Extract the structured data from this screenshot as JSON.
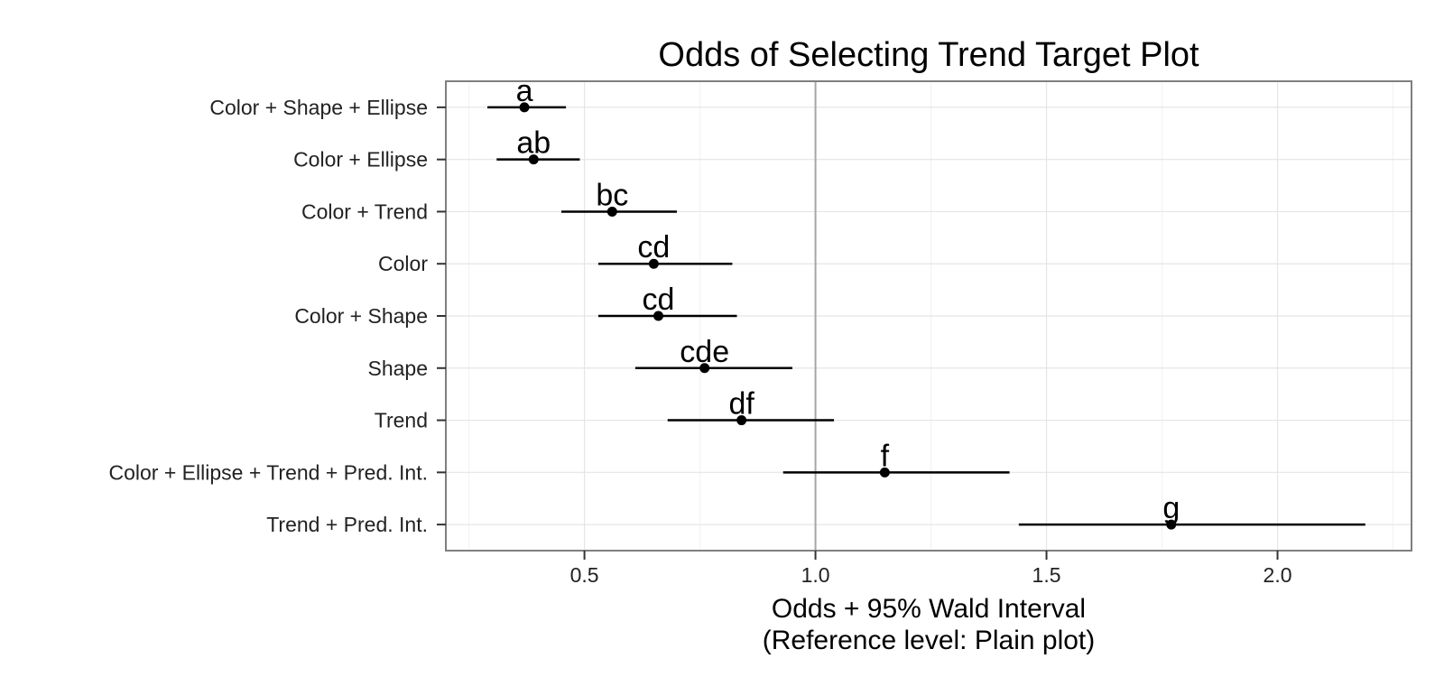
{
  "chart_data": {
    "type": "scatter",
    "title": "Odds of Selecting Trend Target Plot",
    "xlabel_lines": [
      "Odds + 95% Wald Interval",
      "(Reference level: Plain plot)"
    ],
    "ylabel": "",
    "xlim": [
      0.2,
      2.29
    ],
    "x_ticks": [
      0.5,
      1.0,
      1.5,
      2.0
    ],
    "x_tick_labels": [
      "0.5",
      "1.0",
      "1.5",
      "2.0"
    ],
    "reference_line": 1.0,
    "grid": true,
    "categories": [
      "Color + Shape + Ellipse",
      "Color + Ellipse",
      "Color + Trend",
      "Color",
      "Color + Shape",
      "Shape",
      "Trend",
      "Color + Ellipse + Trend + Pred. Int.",
      "Trend + Pred. Int."
    ],
    "points": [
      {
        "category": "Color + Shape + Ellipse",
        "estimate": 0.37,
        "lower": 0.29,
        "upper": 0.46,
        "group": "a"
      },
      {
        "category": "Color + Ellipse",
        "estimate": 0.39,
        "lower": 0.31,
        "upper": 0.49,
        "group": "ab"
      },
      {
        "category": "Color + Trend",
        "estimate": 0.56,
        "lower": 0.45,
        "upper": 0.7,
        "group": "bc"
      },
      {
        "category": "Color",
        "estimate": 0.65,
        "lower": 0.53,
        "upper": 0.82,
        "group": "cd"
      },
      {
        "category": "Color + Shape",
        "estimate": 0.66,
        "lower": 0.53,
        "upper": 0.83,
        "group": "cd"
      },
      {
        "category": "Shape",
        "estimate": 0.76,
        "lower": 0.61,
        "upper": 0.95,
        "group": "cde"
      },
      {
        "category": "Trend",
        "estimate": 0.84,
        "lower": 0.68,
        "upper": 1.04,
        "group": "df"
      },
      {
        "category": "Color + Ellipse + Trend + Pred. Int.",
        "estimate": 1.15,
        "lower": 0.93,
        "upper": 1.42,
        "group": "f"
      },
      {
        "category": "Trend + Pred. Int.",
        "estimate": 1.77,
        "lower": 1.44,
        "upper": 2.19,
        "group": "g"
      }
    ]
  }
}
